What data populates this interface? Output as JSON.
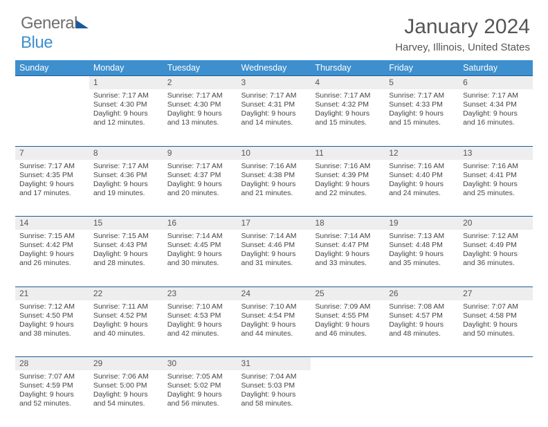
{
  "logo": {
    "part1": "General",
    "part2": "Blue"
  },
  "header": {
    "title": "January 2024",
    "location": "Harvey, Illinois, United States"
  },
  "colors": {
    "header_bg": "#3d8fce",
    "rule": "#1a5a99",
    "daynum_bg": "#eeeeee",
    "text": "#444444"
  },
  "weekdays": [
    "Sunday",
    "Monday",
    "Tuesday",
    "Wednesday",
    "Thursday",
    "Friday",
    "Saturday"
  ],
  "weeks": [
    [
      null,
      {
        "n": "1",
        "sunrise": "7:17 AM",
        "sunset": "4:30 PM",
        "dl1": "Daylight: 9 hours",
        "dl2": "and 12 minutes."
      },
      {
        "n": "2",
        "sunrise": "7:17 AM",
        "sunset": "4:30 PM",
        "dl1": "Daylight: 9 hours",
        "dl2": "and 13 minutes."
      },
      {
        "n": "3",
        "sunrise": "7:17 AM",
        "sunset": "4:31 PM",
        "dl1": "Daylight: 9 hours",
        "dl2": "and 14 minutes."
      },
      {
        "n": "4",
        "sunrise": "7:17 AM",
        "sunset": "4:32 PM",
        "dl1": "Daylight: 9 hours",
        "dl2": "and 15 minutes."
      },
      {
        "n": "5",
        "sunrise": "7:17 AM",
        "sunset": "4:33 PM",
        "dl1": "Daylight: 9 hours",
        "dl2": "and 15 minutes."
      },
      {
        "n": "6",
        "sunrise": "7:17 AM",
        "sunset": "4:34 PM",
        "dl1": "Daylight: 9 hours",
        "dl2": "and 16 minutes."
      }
    ],
    [
      {
        "n": "7",
        "sunrise": "7:17 AM",
        "sunset": "4:35 PM",
        "dl1": "Daylight: 9 hours",
        "dl2": "and 17 minutes."
      },
      {
        "n": "8",
        "sunrise": "7:17 AM",
        "sunset": "4:36 PM",
        "dl1": "Daylight: 9 hours",
        "dl2": "and 19 minutes."
      },
      {
        "n": "9",
        "sunrise": "7:17 AM",
        "sunset": "4:37 PM",
        "dl1": "Daylight: 9 hours",
        "dl2": "and 20 minutes."
      },
      {
        "n": "10",
        "sunrise": "7:16 AM",
        "sunset": "4:38 PM",
        "dl1": "Daylight: 9 hours",
        "dl2": "and 21 minutes."
      },
      {
        "n": "11",
        "sunrise": "7:16 AM",
        "sunset": "4:39 PM",
        "dl1": "Daylight: 9 hours",
        "dl2": "and 22 minutes."
      },
      {
        "n": "12",
        "sunrise": "7:16 AM",
        "sunset": "4:40 PM",
        "dl1": "Daylight: 9 hours",
        "dl2": "and 24 minutes."
      },
      {
        "n": "13",
        "sunrise": "7:16 AM",
        "sunset": "4:41 PM",
        "dl1": "Daylight: 9 hours",
        "dl2": "and 25 minutes."
      }
    ],
    [
      {
        "n": "14",
        "sunrise": "7:15 AM",
        "sunset": "4:42 PM",
        "dl1": "Daylight: 9 hours",
        "dl2": "and 26 minutes."
      },
      {
        "n": "15",
        "sunrise": "7:15 AM",
        "sunset": "4:43 PM",
        "dl1": "Daylight: 9 hours",
        "dl2": "and 28 minutes."
      },
      {
        "n": "16",
        "sunrise": "7:14 AM",
        "sunset": "4:45 PM",
        "dl1": "Daylight: 9 hours",
        "dl2": "and 30 minutes."
      },
      {
        "n": "17",
        "sunrise": "7:14 AM",
        "sunset": "4:46 PM",
        "dl1": "Daylight: 9 hours",
        "dl2": "and 31 minutes."
      },
      {
        "n": "18",
        "sunrise": "7:14 AM",
        "sunset": "4:47 PM",
        "dl1": "Daylight: 9 hours",
        "dl2": "and 33 minutes."
      },
      {
        "n": "19",
        "sunrise": "7:13 AM",
        "sunset": "4:48 PM",
        "dl1": "Daylight: 9 hours",
        "dl2": "and 35 minutes."
      },
      {
        "n": "20",
        "sunrise": "7:12 AM",
        "sunset": "4:49 PM",
        "dl1": "Daylight: 9 hours",
        "dl2": "and 36 minutes."
      }
    ],
    [
      {
        "n": "21",
        "sunrise": "7:12 AM",
        "sunset": "4:50 PM",
        "dl1": "Daylight: 9 hours",
        "dl2": "and 38 minutes."
      },
      {
        "n": "22",
        "sunrise": "7:11 AM",
        "sunset": "4:52 PM",
        "dl1": "Daylight: 9 hours",
        "dl2": "and 40 minutes."
      },
      {
        "n": "23",
        "sunrise": "7:10 AM",
        "sunset": "4:53 PM",
        "dl1": "Daylight: 9 hours",
        "dl2": "and 42 minutes."
      },
      {
        "n": "24",
        "sunrise": "7:10 AM",
        "sunset": "4:54 PM",
        "dl1": "Daylight: 9 hours",
        "dl2": "and 44 minutes."
      },
      {
        "n": "25",
        "sunrise": "7:09 AM",
        "sunset": "4:55 PM",
        "dl1": "Daylight: 9 hours",
        "dl2": "and 46 minutes."
      },
      {
        "n": "26",
        "sunrise": "7:08 AM",
        "sunset": "4:57 PM",
        "dl1": "Daylight: 9 hours",
        "dl2": "and 48 minutes."
      },
      {
        "n": "27",
        "sunrise": "7:07 AM",
        "sunset": "4:58 PM",
        "dl1": "Daylight: 9 hours",
        "dl2": "and 50 minutes."
      }
    ],
    [
      {
        "n": "28",
        "sunrise": "7:07 AM",
        "sunset": "4:59 PM",
        "dl1": "Daylight: 9 hours",
        "dl2": "and 52 minutes."
      },
      {
        "n": "29",
        "sunrise": "7:06 AM",
        "sunset": "5:00 PM",
        "dl1": "Daylight: 9 hours",
        "dl2": "and 54 minutes."
      },
      {
        "n": "30",
        "sunrise": "7:05 AM",
        "sunset": "5:02 PM",
        "dl1": "Daylight: 9 hours",
        "dl2": "and 56 minutes."
      },
      {
        "n": "31",
        "sunrise": "7:04 AM",
        "sunset": "5:03 PM",
        "dl1": "Daylight: 9 hours",
        "dl2": "and 58 minutes."
      },
      null,
      null,
      null
    ]
  ],
  "labels": {
    "sunrise_prefix": "Sunrise: ",
    "sunset_prefix": "Sunset: "
  }
}
